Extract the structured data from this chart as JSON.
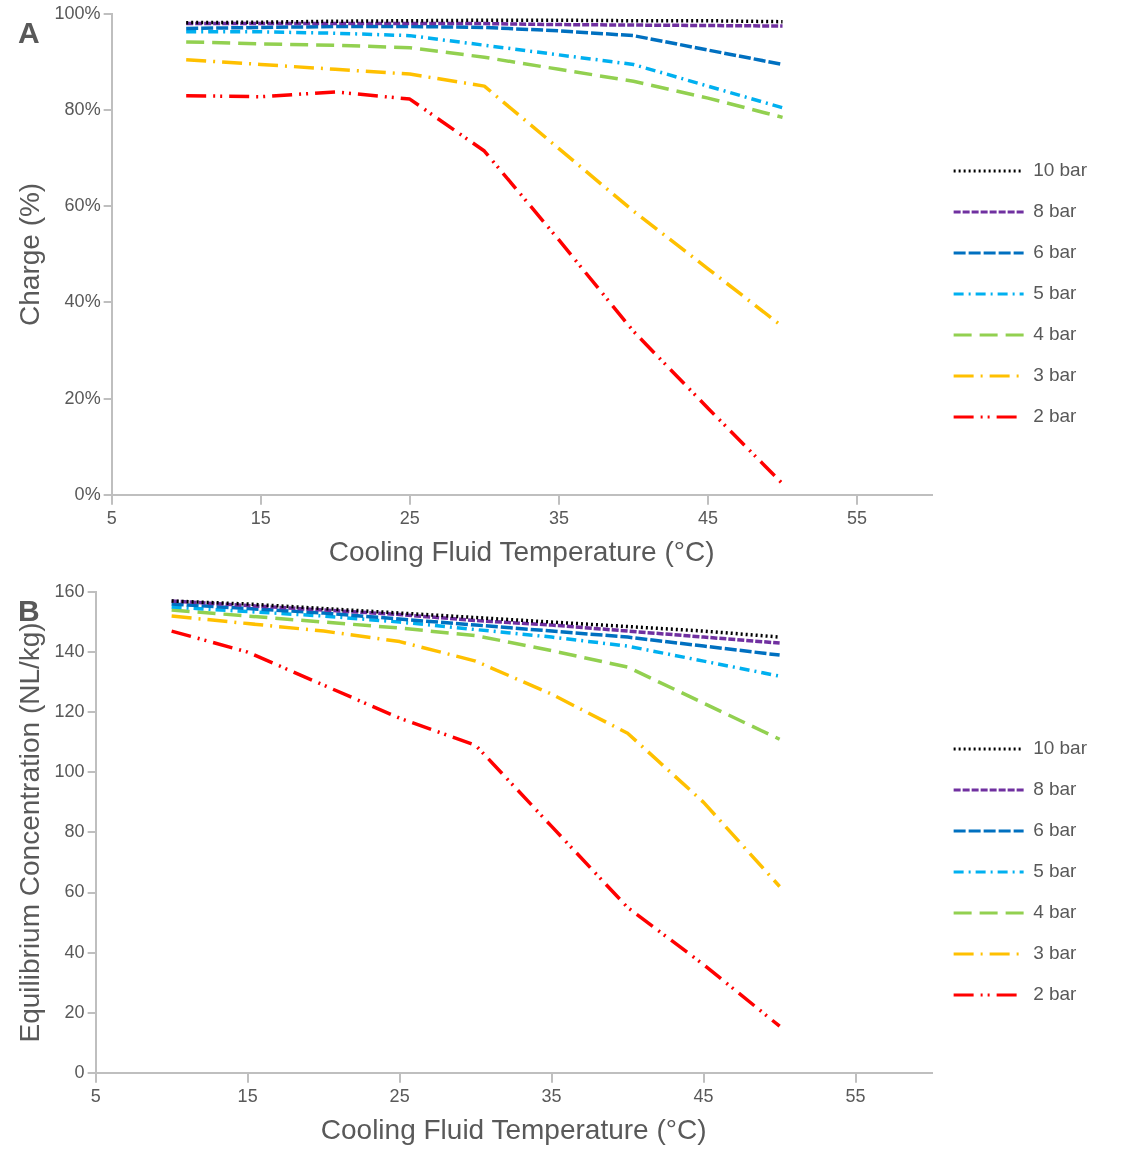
{
  "chart_data": [
    {
      "type": "line",
      "annotations": [
        "A"
      ],
      "xlabel": "Cooling Fluid Temperature (°C)",
      "ylabel": "Charge (%)",
      "x": [
        10,
        15,
        20,
        25,
        30,
        35,
        40,
        45,
        50
      ],
      "xlim": [
        5,
        60
      ],
      "xticks": [
        5,
        15,
        25,
        35,
        45,
        55
      ],
      "ylim": [
        0,
        100
      ],
      "yticks": [
        {
          "value": 0,
          "label": "0%"
        },
        {
          "value": 20,
          "label": "20%"
        },
        {
          "value": 40,
          "label": "40%"
        },
        {
          "value": 60,
          "label": "60%"
        },
        {
          "value": 80,
          "label": "80%"
        },
        {
          "value": 100,
          "label": "100%"
        }
      ],
      "grid": false,
      "legend": "right",
      "marker": "none",
      "series": [
        {
          "name": "10 bar",
          "color": "#000000",
          "line_style": "dotted",
          "values": [
            98.2,
            98.3,
            98.5,
            98.6,
            98.7,
            98.7,
            98.6,
            98.6,
            98.4
          ]
        },
        {
          "name": "8 bar",
          "color": "#7030a0",
          "line_style": "dashed",
          "values": [
            98,
            98,
            98,
            98,
            98,
            97.8,
            97.7,
            97.6,
            97.5
          ]
        },
        {
          "name": "6 bar",
          "color": "#0070c0",
          "line_style": "dashed",
          "values": [
            97,
            97.2,
            97.4,
            97.4,
            97.2,
            96.5,
            95.5,
            92.5,
            89.5
          ]
        },
        {
          "name": "5 bar",
          "color": "#00b0f0",
          "line_style": "dashed",
          "values": [
            96.3,
            96.3,
            96,
            95.5,
            93.5,
            91.5,
            89.5,
            85,
            80.5
          ]
        },
        {
          "name": "4 bar",
          "color": "#92d050",
          "line_style": "dashed",
          "values": [
            94.2,
            93.8,
            93.5,
            93,
            91,
            88.5,
            86,
            82.5,
            78.5
          ]
        },
        {
          "name": "3 bar",
          "color": "#ffc000",
          "line_style": "dashed",
          "values": [
            90.5,
            89.5,
            88.5,
            87.5,
            85,
            72,
            59,
            47,
            35
          ]
        },
        {
          "name": "2 bar",
          "color": "#ff0000",
          "line_style": "dashed",
          "values": [
            83,
            82.8,
            83.8,
            82.3,
            71.5,
            53,
            34,
            18,
            2.3
          ]
        }
      ]
    },
    {
      "type": "line",
      "annotations": [
        "B"
      ],
      "xlabel": "Cooling Fluid Temperature (°C)",
      "ylabel": "Equilibrium Concentration (NL/kg)",
      "x": [
        10,
        15,
        20,
        25,
        30,
        35,
        40,
        45,
        50
      ],
      "xlim": [
        5,
        60
      ],
      "xticks": [
        5,
        15,
        25,
        35,
        45,
        55
      ],
      "ylim": [
        0,
        160
      ],
      "yticks": [
        0,
        20,
        40,
        60,
        80,
        100,
        120,
        140,
        160
      ],
      "grid": false,
      "legend": "right",
      "marker": "none",
      "series": [
        {
          "name": "10 bar",
          "color": "#000000",
          "line_style": "dotted",
          "values": [
            157,
            156,
            154.5,
            153,
            151.5,
            150,
            148.5,
            147,
            145
          ]
        },
        {
          "name": "8 bar",
          "color": "#7030a0",
          "line_style": "dashed",
          "values": [
            157,
            155.5,
            154,
            152.5,
            150.5,
            149,
            147,
            145,
            143
          ]
        },
        {
          "name": "6 bar",
          "color": "#0070c0",
          "line_style": "dashed",
          "values": [
            156,
            154.5,
            153,
            151,
            149,
            147,
            145,
            142,
            139
          ]
        },
        {
          "name": "5 bar",
          "color": "#00b0f0",
          "line_style": "dashed",
          "values": [
            155,
            153.5,
            152,
            150,
            147.5,
            145,
            142,
            137,
            132
          ]
        },
        {
          "name": "4 bar",
          "color": "#92d050",
          "line_style": "dashed",
          "values": [
            154,
            152,
            150,
            148,
            145.5,
            140.5,
            135,
            123,
            111
          ]
        },
        {
          "name": "3 bar",
          "color": "#ffc000",
          "line_style": "dashed",
          "values": [
            152,
            149.5,
            147,
            143.5,
            137,
            126,
            113,
            90,
            62
          ]
        },
        {
          "name": "2 bar",
          "color": "#ff0000",
          "line_style": "dashed",
          "values": [
            147,
            140,
            129,
            118,
            109,
            82,
            55,
            36,
            15.5
          ]
        }
      ]
    }
  ]
}
